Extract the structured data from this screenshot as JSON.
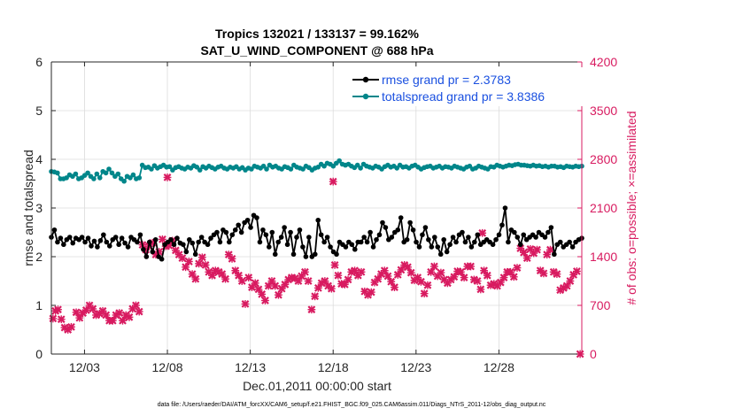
{
  "chart_data": {
    "type": "line",
    "title_line1": "Tropics 132021 / 133137 = 99.162%",
    "title_line2": "SAT_U_WIND_COMPONENT @ 688 hPa",
    "xlabel": "Dec.01,2011 00:00:00 start",
    "ylabel_left": "rmse and totalspread",
    "ylabel_right": "# of obs: o=possible; ×=assimilated",
    "footnote": "data file: /Users/raeder/DAI/ATM_forcXX/CAM6_setup/f.e21.FHIST_BGC.f09_025.CAM6assim.011/Diags_NTrS_2011-12/obs_diag_output.nc",
    "x_range": [
      1,
      33
    ],
    "x_ticks": [
      3,
      8,
      13,
      18,
      23,
      28
    ],
    "x_tick_labels": [
      "12/03",
      "12/08",
      "12/13",
      "12/18",
      "12/23",
      "12/28"
    ],
    "ylim_left": [
      0,
      6
    ],
    "y_ticks_left": [
      "0",
      "1",
      "2",
      "3",
      "4",
      "5",
      "6"
    ],
    "ylim_right": [
      0,
      4200
    ],
    "y_ticks_right": [
      "0",
      "700",
      "1400",
      "2100",
      "2800",
      "3500",
      "4200"
    ],
    "grid": true,
    "legend_position": "top-right",
    "series": [
      {
        "name": "rmse grand pr = 2.3783",
        "color": "#000000",
        "marker": "dot",
        "values": [
          2.4,
          2.55,
          2.3,
          2.38,
          2.25,
          2.35,
          2.4,
          2.28,
          2.38,
          2.35,
          2.4,
          2.3,
          2.38,
          2.22,
          2.32,
          2.2,
          2.33,
          2.45,
          2.3,
          2.22,
          2.35,
          2.4,
          2.25,
          2.38,
          2.28,
          2.2,
          2.4,
          2.35,
          2.3,
          2.45,
          2.15,
          2.0,
          2.3,
          2.1,
          2.35,
          2.0,
          1.95,
          2.25,
          2.3,
          2.35,
          2.25,
          2.38,
          2.28,
          2.25,
          2.1,
          2.35,
          2.28,
          2.05,
          2.3,
          2.4,
          2.3,
          2.25,
          2.38,
          2.45,
          2.5,
          2.3,
          2.55,
          2.5,
          2.3,
          2.45,
          2.55,
          2.65,
          2.5,
          2.7,
          2.75,
          2.6,
          2.85,
          2.8,
          2.3,
          2.55,
          2.45,
          2.2,
          2.5,
          2.05,
          2.3,
          2.4,
          2.6,
          2.25,
          2.5,
          2.05,
          2.4,
          2.55,
          2.2,
          2.0,
          2.4,
          2.0,
          2.05,
          2.75,
          2.45,
          2.3,
          2.4,
          2.2,
          2.1,
          2.05,
          2.3,
          2.25,
          2.2,
          2.3,
          2.25,
          2.15,
          2.3,
          2.3,
          2.4,
          2.3,
          2.5,
          2.2,
          2.35,
          2.45,
          2.7,
          2.6,
          2.35,
          2.4,
          2.5,
          2.55,
          2.8,
          2.3,
          2.35,
          2.7,
          2.55,
          2.3,
          2.2,
          2.45,
          2.6,
          2.35,
          2.2,
          2.4,
          2.2,
          2.05,
          2.35,
          2.1,
          2.25,
          2.4,
          2.3,
          2.45,
          2.5,
          2.3,
          2.4,
          2.2,
          2.3,
          2.45,
          2.25,
          2.3,
          2.35,
          2.3,
          2.25,
          2.35,
          2.45,
          2.65,
          3.0,
          2.3,
          2.55,
          2.5,
          2.4,
          2.25,
          2.45,
          2.35,
          2.4,
          2.45,
          2.4,
          2.5,
          2.45,
          2.4,
          2.5,
          2.6,
          2.05,
          2.25,
          2.3,
          2.2,
          2.25,
          2.3,
          2.2,
          2.3,
          2.35,
          2.38
        ]
      },
      {
        "name": "totalspread grand pr = 3.8386",
        "color": "#00868a",
        "marker": "dot",
        "values": [
          3.75,
          3.74,
          3.72,
          3.6,
          3.6,
          3.62,
          3.68,
          3.65,
          3.7,
          3.6,
          3.62,
          3.67,
          3.72,
          3.65,
          3.6,
          3.7,
          3.62,
          3.75,
          3.72,
          3.8,
          3.72,
          3.65,
          3.7,
          3.6,
          3.55,
          3.65,
          3.62,
          3.68,
          3.6,
          3.62,
          3.88,
          3.83,
          3.84,
          3.8,
          3.87,
          3.82,
          3.85,
          3.88,
          3.84,
          3.85,
          3.78,
          3.83,
          3.85,
          3.82,
          3.8,
          3.84,
          3.82,
          3.87,
          3.84,
          3.78,
          3.85,
          3.82,
          3.86,
          3.83,
          3.8,
          3.84,
          3.86,
          3.82,
          3.8,
          3.84,
          3.82,
          3.85,
          3.8,
          3.83,
          3.78,
          3.82,
          3.8,
          3.86,
          3.84,
          3.82,
          3.86,
          3.8,
          3.88,
          3.84,
          3.86,
          3.82,
          3.8,
          3.85,
          3.83,
          3.8,
          3.88,
          3.84,
          3.82,
          3.8,
          3.86,
          3.83,
          3.78,
          3.82,
          3.84,
          3.9,
          3.86,
          3.92,
          3.9,
          3.86,
          3.92,
          3.97,
          3.9,
          3.88,
          3.9,
          3.86,
          3.83,
          3.88,
          3.82,
          3.9,
          3.86,
          3.84,
          3.82,
          3.86,
          3.84,
          3.8,
          3.85,
          3.88,
          3.84,
          3.86,
          3.82,
          3.88,
          3.84,
          3.85,
          3.82,
          3.86,
          3.88,
          3.84,
          3.8,
          3.83,
          3.85,
          3.86,
          3.82,
          3.84,
          3.86,
          3.82,
          3.85,
          3.84,
          3.82,
          3.86,
          3.84,
          3.82,
          3.8,
          3.84,
          3.86,
          3.8,
          3.82,
          3.86,
          3.84,
          3.82,
          3.8,
          3.85,
          3.84,
          3.88,
          3.86,
          3.84,
          3.86,
          3.88,
          3.87,
          3.89,
          3.9,
          3.88,
          3.88,
          3.87,
          3.86,
          3.88,
          3.86,
          3.87,
          3.85,
          3.86,
          3.84,
          3.86,
          3.86,
          3.84,
          3.85,
          3.83,
          3.86,
          3.85,
          3.84,
          3.86,
          3.85,
          3.86
        ]
      }
    ],
    "obs_series": {
      "name": "# assimilated observations",
      "color": "#d81b60",
      "marker": "×",
      "points": [
        [
          1.1,
          510
        ],
        [
          1.25,
          620
        ],
        [
          1.4,
          640
        ],
        [
          1.6,
          500
        ],
        [
          1.8,
          380
        ],
        [
          2.0,
          350
        ],
        [
          2.2,
          390
        ],
        [
          2.5,
          600
        ],
        [
          2.7,
          520
        ],
        [
          2.9,
          590
        ],
        [
          3.1,
          630
        ],
        [
          3.3,
          700
        ],
        [
          3.5,
          650
        ],
        [
          3.7,
          560
        ],
        [
          3.9,
          580
        ],
        [
          4.1,
          620
        ],
        [
          4.3,
          560
        ],
        [
          4.5,
          480
        ],
        [
          4.7,
          480
        ],
        [
          4.9,
          560
        ],
        [
          5.1,
          590
        ],
        [
          5.3,
          480
        ],
        [
          5.5,
          560
        ],
        [
          5.7,
          530
        ],
        [
          5.9,
          650
        ],
        [
          6.1,
          700
        ],
        [
          6.3,
          610
        ],
        [
          6.5,
          1570
        ],
        [
          6.7,
          1500
        ],
        [
          6.9,
          1550
        ],
        [
          7.1,
          1600
        ],
        [
          7.3,
          1430
        ],
        [
          7.5,
          1470
        ],
        [
          7.7,
          1650
        ],
        [
          7.9,
          1550
        ],
        [
          8.1,
          1560
        ],
        [
          8.3,
          1630
        ],
        [
          8.5,
          1490
        ],
        [
          8.7,
          1430
        ],
        [
          8.9,
          1380
        ],
        [
          9.1,
          1250
        ],
        [
          9.3,
          1330
        ],
        [
          9.5,
          1150
        ],
        [
          9.7,
          1080
        ],
        [
          9.9,
          1300
        ],
        [
          10.1,
          1390
        ],
        [
          10.3,
          1280
        ],
        [
          10.5,
          1180
        ],
        [
          10.7,
          1130
        ],
        [
          10.9,
          1200
        ],
        [
          11.1,
          1180
        ],
        [
          11.3,
          1150
        ],
        [
          11.5,
          1080
        ],
        [
          11.7,
          1430
        ],
        [
          11.9,
          1370
        ],
        [
          12.1,
          1200
        ],
        [
          12.3,
          1130
        ],
        [
          12.5,
          1050
        ],
        [
          12.7,
          720
        ],
        [
          12.9,
          1100
        ],
        [
          13.1,
          960
        ],
        [
          13.3,
          1020
        ],
        [
          13.5,
          930
        ],
        [
          13.7,
          860
        ],
        [
          13.9,
          770
        ],
        [
          14.1,
          980
        ],
        [
          14.3,
          1050
        ],
        [
          14.5,
          980
        ],
        [
          14.7,
          850
        ],
        [
          14.9,
          940
        ],
        [
          15.1,
          1000
        ],
        [
          15.3,
          1070
        ],
        [
          15.5,
          1100
        ],
        [
          15.7,
          1090
        ],
        [
          15.9,
          1050
        ],
        [
          16.1,
          1120
        ],
        [
          16.3,
          1180
        ],
        [
          16.5,
          1050
        ],
        [
          16.7,
          640
        ],
        [
          16.9,
          830
        ],
        [
          17.1,
          950
        ],
        [
          17.3,
          1020
        ],
        [
          17.5,
          1050
        ],
        [
          17.7,
          980
        ],
        [
          17.9,
          940
        ],
        [
          18.1,
          1280
        ],
        [
          18.3,
          1130
        ],
        [
          18.5,
          1010
        ],
        [
          18.7,
          1000
        ],
        [
          18.9,
          1070
        ],
        [
          19.1,
          1180
        ],
        [
          19.3,
          1200
        ],
        [
          19.5,
          1130
        ],
        [
          19.7,
          1180
        ],
        [
          19.9,
          900
        ],
        [
          20.1,
          850
        ],
        [
          20.3,
          890
        ],
        [
          20.5,
          1030
        ],
        [
          20.7,
          1080
        ],
        [
          20.9,
          1150
        ],
        [
          21.1,
          1200
        ],
        [
          21.3,
          1120
        ],
        [
          21.5,
          1040
        ],
        [
          21.7,
          960
        ],
        [
          21.9,
          1140
        ],
        [
          22.1,
          1210
        ],
        [
          22.3,
          1280
        ],
        [
          22.5,
          1250
        ],
        [
          22.7,
          1170
        ],
        [
          22.9,
          1060
        ],
        [
          23.1,
          1100
        ],
        [
          23.3,
          1040
        ],
        [
          23.5,
          870
        ],
        [
          23.7,
          990
        ],
        [
          23.9,
          1180
        ],
        [
          24.1,
          1260
        ],
        [
          24.3,
          1120
        ],
        [
          24.5,
          1170
        ],
        [
          24.7,
          1070
        ],
        [
          24.9,
          1020
        ],
        [
          25.1,
          1070
        ],
        [
          25.3,
          1110
        ],
        [
          25.5,
          1190
        ],
        [
          25.7,
          1180
        ],
        [
          25.9,
          1100
        ],
        [
          26.1,
          1260
        ],
        [
          26.3,
          1260
        ],
        [
          26.5,
          1070
        ],
        [
          26.7,
          1050
        ],
        [
          26.9,
          930
        ],
        [
          27.1,
          1200
        ],
        [
          27.3,
          1130
        ],
        [
          27.5,
          990
        ],
        [
          27.7,
          1010
        ],
        [
          27.9,
          980
        ],
        [
          28.1,
          1030
        ],
        [
          28.3,
          1100
        ],
        [
          28.5,
          1180
        ],
        [
          28.7,
          1180
        ],
        [
          28.9,
          1110
        ],
        [
          29.1,
          1240
        ],
        [
          29.3,
          1520
        ],
        [
          29.5,
          1460
        ],
        [
          29.7,
          1380
        ],
        [
          29.9,
          1510
        ],
        [
          30.1,
          1450
        ],
        [
          30.3,
          1500
        ],
        [
          30.5,
          1200
        ],
        [
          30.7,
          1160
        ],
        [
          30.9,
          1430
        ],
        [
          31.1,
          1500
        ],
        [
          31.3,
          1180
        ],
        [
          31.5,
          1150
        ],
        [
          31.7,
          920
        ],
        [
          31.9,
          950
        ],
        [
          32.1,
          980
        ],
        [
          32.3,
          1050
        ],
        [
          32.5,
          1140
        ],
        [
          32.7,
          1190
        ]
      ],
      "outliers": [
        [
          8.0,
          2540
        ],
        [
          18.0,
          2480
        ],
        [
          27.0,
          1740
        ],
        [
          32.9,
          0
        ]
      ]
    }
  }
}
